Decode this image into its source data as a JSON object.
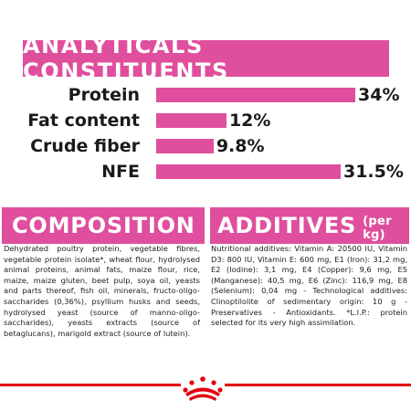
{
  "analytics": {
    "title": "ANALYTICALS CONSTITUENTS",
    "rows": [
      {
        "label": "Protein",
        "value_text": "34%",
        "value": 34
      },
      {
        "label": "Fat content",
        "value_text": "12%",
        "value": 12
      },
      {
        "label": "Crude fiber",
        "value_text": "9.8%",
        "value": 9.8
      },
      {
        "label": "NFE",
        "value_text": "31.5%",
        "value": 31.5
      }
    ]
  },
  "composition": {
    "title": "COMPOSITION",
    "text": "Dehydrated poultry protein, vegetable fibres, vegetable protein isolate*, wheat flour, hydrolysed animal proteins, animal fats, maize flour, rice, maize, maize gluten, beet pulp, soya oil, yeasts and parts thereof, fish oil, minerals, fructo-oligo- saccharides (0,36%), psyllium husks and seeds, hydrolysed yeast (source of manno-oligo-saccharides), yeasts extracts (source of betaglucans), marigold extract (source of lutein)."
  },
  "additives": {
    "title": "ADDITIVES",
    "unit": "(per kg)",
    "text": "Nutritional additives: Vitamin A: 20500 IU, Vitamin D3: 800 IU, Vitamin E: 600 mg, E1 (Iron): 31,2 mg, E2 (Iodine): 3,1 mg, E4 (Copper): 9,6 mg, E5 (Manganese): 40,5 mg, E6 (Zinc): 116,9 mg, E8 (Selenium): 0,04 mg - Technological additives: Clinoptilolite of sedimentary origin: 10 g - Preservatives - Antioxidants. *L.I.P.: protein selected for its very high assimilation."
  },
  "colors": {
    "accent": "#df4f9d",
    "brand_red": "#e3000f"
  },
  "footer": {
    "logo_icon": "royal-canin-crown-icon"
  }
}
